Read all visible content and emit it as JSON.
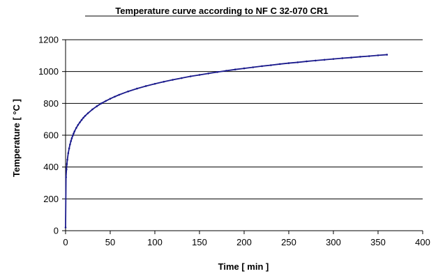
{
  "chart_data": {
    "type": "line",
    "title": "Temperature curve according to NF C 32-070 CR1",
    "xlabel": "Time [ min ]",
    "ylabel": "Temperature [ °C ]",
    "xlim": [
      0,
      400
    ],
    "ylim": [
      0,
      1200
    ],
    "xticks": [
      0,
      50,
      100,
      150,
      200,
      250,
      300,
      350,
      400
    ],
    "yticks": [
      0,
      200,
      400,
      600,
      800,
      1000,
      1200
    ],
    "grid": "horizontal",
    "legend": "none",
    "series": [
      {
        "color": "#1a1a8c",
        "marker": "small-dot",
        "x": [
          0,
          0.5,
          1,
          1.5,
          2,
          3,
          4,
          5,
          6,
          7,
          8,
          9,
          10,
          12,
          14,
          16,
          18,
          20,
          22,
          25,
          30,
          35,
          40,
          45,
          50,
          55,
          60,
          70,
          80,
          90,
          100,
          110,
          120,
          130,
          140,
          150,
          160,
          170,
          180,
          190,
          200,
          210,
          220,
          230,
          240,
          250,
          260,
          270,
          280,
          290,
          300,
          310,
          320,
          330,
          340,
          350,
          360
        ],
        "y": [
          20,
          336,
          385,
          419,
          446,
          487,
          517,
          542,
          563,
          581,
          597,
          611,
          624,
          646,
          665,
          681,
          696,
          710,
          722,
          738,
          762,
          782,
          800,
          815,
          829,
          842,
          854,
          875,
          893,
          909,
          923,
          936,
          948,
          959,
          970,
          979,
          988,
          997,
          1005,
          1013,
          1020,
          1027,
          1034,
          1040,
          1047,
          1053,
          1058,
          1064,
          1069,
          1074,
          1079,
          1084,
          1088,
          1093,
          1097,
          1102,
          1106
        ]
      }
    ]
  }
}
